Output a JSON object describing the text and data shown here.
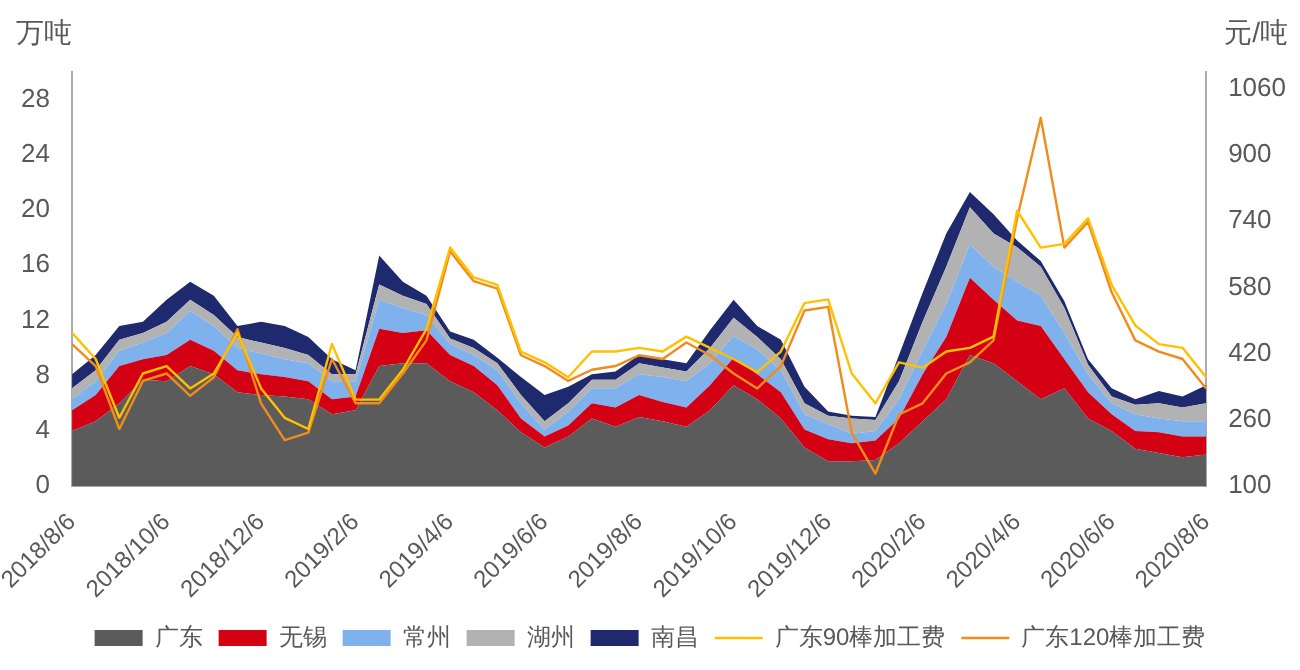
{
  "chart_data": {
    "type": "area",
    "ylabel": "万吨",
    "y2label": "元/吨",
    "stacked": true,
    "legend": "bottom",
    "grid": false,
    "categories": [
      "2018/8/6",
      null,
      null,
      null,
      "2018/10/6",
      null,
      null,
      null,
      "2018/12/6",
      null,
      null,
      null,
      "2019/2/6",
      null,
      null,
      null,
      "2019/4/6",
      null,
      null,
      null,
      "2019/6/6",
      null,
      null,
      null,
      "2019/8/6",
      null,
      null,
      null,
      "2019/10/6",
      null,
      null,
      null,
      "2019/12/6",
      null,
      null,
      null,
      "2020/2/6",
      null,
      null,
      null,
      "2020/4/6",
      null,
      null,
      null,
      "2020/6/6",
      null,
      null,
      null,
      "2020/8/6"
    ],
    "ylim": [
      0,
      30
    ],
    "yticks": [
      0,
      4,
      8,
      12,
      16,
      20,
      24,
      28
    ],
    "y2lim": [
      100,
      1100
    ],
    "y2ticks": [
      100,
      260,
      420,
      580,
      740,
      900,
      1060
    ],
    "series": [
      {
        "name": "广东",
        "color": "#5b5b5b",
        "values": [
          4.0,
          4.7,
          6.0,
          7.7,
          7.6,
          8.7,
          8.1,
          6.8,
          6.6,
          6.5,
          6.3,
          5.2,
          5.5,
          8.7,
          8.9,
          8.9,
          7.6,
          6.8,
          5.5,
          3.9,
          2.8,
          3.6,
          4.9,
          4.3,
          5.0,
          4.7,
          4.3,
          5.5,
          7.3,
          6.3,
          4.9,
          2.8,
          1.8,
          1.8,
          1.9,
          3.1,
          4.7,
          6.3,
          9.5,
          8.9,
          7.6,
          6.3,
          7.1,
          4.9,
          4.0,
          2.7,
          2.4,
          2.1,
          2.3
        ]
      },
      {
        "name": "无锡",
        "color": "#d40014",
        "values": [
          1.5,
          1.9,
          2.7,
          1.5,
          1.9,
          1.9,
          1.7,
          1.6,
          1.5,
          1.4,
          1.3,
          1.1,
          1.0,
          2.7,
          2.2,
          2.4,
          1.9,
          1.9,
          1.8,
          1.0,
          0.8,
          0.8,
          1.1,
          1.4,
          1.6,
          1.4,
          1.4,
          1.8,
          2.0,
          1.8,
          1.9,
          1.3,
          1.6,
          1.3,
          1.4,
          1.8,
          3.4,
          4.5,
          5.6,
          4.6,
          4.4,
          5.3,
          2.1,
          1.9,
          1.2,
          1.3,
          1.5,
          1.5,
          1.3
        ]
      },
      {
        "name": "常州",
        "color": "#7fb2ec",
        "values": [
          0.8,
          1.0,
          1.1,
          1.2,
          1.6,
          2.1,
          1.8,
          1.6,
          1.5,
          1.3,
          1.3,
          1.3,
          1.1,
          2.1,
          1.8,
          1.1,
          0.8,
          0.8,
          1.1,
          1.1,
          0.5,
          1.0,
          1.1,
          1.4,
          1.5,
          1.8,
          1.9,
          1.6,
          1.6,
          1.8,
          1.6,
          1.1,
          1.1,
          0.7,
          0.7,
          1.4,
          1.7,
          2.4,
          2.4,
          2.4,
          2.8,
          2.2,
          1.9,
          1.3,
          0.8,
          1.2,
          1.0,
          1.1,
          1.1
        ]
      },
      {
        "name": "湖州",
        "color": "#b2b2b2",
        "values": [
          0.8,
          0.8,
          0.8,
          0.7,
          0.8,
          0.8,
          0.8,
          0.8,
          0.8,
          0.8,
          0.6,
          0.5,
          0.5,
          1.1,
          0.9,
          0.8,
          0.4,
          0.5,
          0.5,
          0.6,
          0.6,
          0.6,
          0.6,
          0.6,
          0.8,
          0.7,
          0.7,
          1.1,
          1.3,
          0.9,
          0.8,
          0.8,
          0.6,
          1.1,
          0.8,
          1.3,
          2.1,
          2.7,
          2.7,
          2.4,
          2.5,
          2.1,
          1.8,
          0.7,
          0.5,
          0.7,
          1.1,
          1.0,
          1.3
        ]
      },
      {
        "name": "南昌",
        "color": "#1f2a6e",
        "values": [
          1.0,
          1.1,
          1.0,
          0.8,
          1.6,
          1.3,
          1.4,
          0.8,
          1.5,
          1.6,
          1.3,
          1.1,
          0.3,
          2.1,
          1.0,
          0.6,
          0.5,
          0.6,
          0.4,
          1.3,
          1.9,
          1.2,
          0.4,
          0.6,
          0.6,
          0.6,
          0.6,
          1.3,
          1.3,
          0.8,
          1.4,
          1.2,
          0.3,
          0.2,
          0.2,
          1.9,
          2.1,
          2.4,
          1.1,
          1.4,
          0.5,
          0.4,
          0.5,
          0.4,
          0.6,
          0.4,
          0.9,
          0.8,
          1.3
        ]
      },
      {
        "name": "广东90棒加工费",
        "type": "line",
        "axis": "y2",
        "color": "#ffc000",
        "values": [
          470,
          407,
          265,
          372,
          390,
          336,
          372,
          470,
          336,
          265,
          238,
          443,
          309,
          309,
          381,
          479,
          676,
          604,
          586,
          425,
          399,
          363,
          425,
          425,
          434,
          425,
          461,
          434,
          407,
          375,
          425,
          542,
          551,
          372,
          300,
          399,
          386,
          425,
          434,
          461,
          765,
          676,
          685,
          747,
          586,
          488,
          443,
          434,
          363
        ]
      },
      {
        "name": "广东120棒加工费",
        "type": "line",
        "axis": "y2",
        "color": "#f08c1e",
        "values": [
          443,
          390,
          238,
          354,
          372,
          318,
          363,
          479,
          300,
          211,
          229,
          407,
          300,
          300,
          372,
          452,
          667,
          595,
          577,
          416,
          390,
          354,
          381,
          390,
          416,
          407,
          447,
          416,
          372,
          336,
          390,
          524,
          533,
          229,
          130,
          273,
          300,
          372,
          399,
          452,
          747,
          989,
          676,
          738,
          568,
          452,
          425,
          407,
          336
        ]
      }
    ]
  }
}
